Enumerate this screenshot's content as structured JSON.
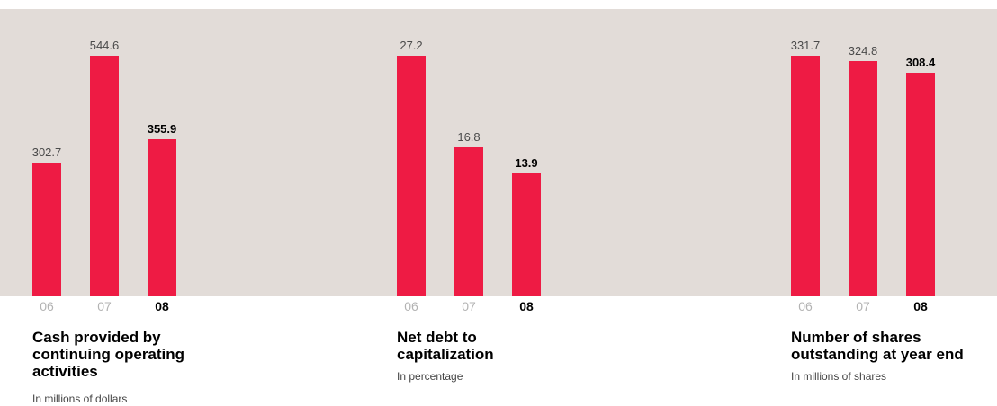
{
  "colors": {
    "bar": "#ee1b44",
    "band": "#e2dcd8",
    "muted_text": "#b3b3b3",
    "value_text": "#4a4a4a"
  },
  "chart_data": [
    {
      "type": "bar",
      "title": "Cash provided by\ncontinuing operating\nactivities",
      "subtitle": "In millions of dollars",
      "categories": [
        "06",
        "07",
        "08"
      ],
      "values": [
        302.7,
        544.6,
        355.9
      ],
      "value_labels": [
        "302.7",
        "544.6",
        "355.9"
      ],
      "highlight_index": 2,
      "ylim": [
        0,
        544.6
      ],
      "grid": false
    },
    {
      "type": "bar",
      "title": "Net debt to\ncapitalization",
      "subtitle": "In percentage",
      "categories": [
        "06",
        "07",
        "08"
      ],
      "values": [
        27.2,
        16.8,
        13.9
      ],
      "value_labels": [
        "27.2",
        "16.8",
        "13.9"
      ],
      "highlight_index": 2,
      "ylim": [
        0,
        27.2
      ],
      "grid": false
    },
    {
      "type": "bar",
      "title": "Number of shares\noutstanding at year end",
      "subtitle": "In millions of shares",
      "categories": [
        "06",
        "07",
        "08"
      ],
      "values": [
        331.7,
        324.8,
        308.4
      ],
      "value_labels": [
        "331.7",
        "324.8",
        "308.4"
      ],
      "highlight_index": 2,
      "ylim": [
        0,
        331.7
      ],
      "grid": false
    }
  ]
}
